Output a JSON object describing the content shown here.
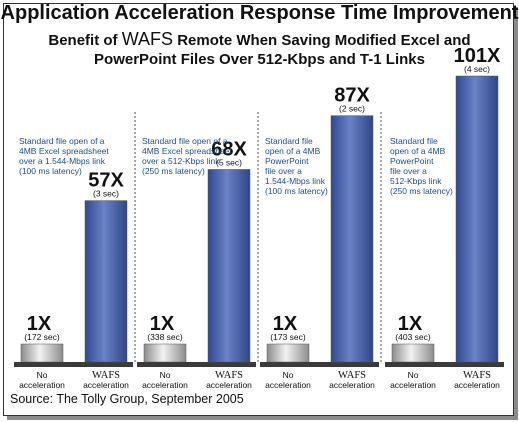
{
  "chart_data": {
    "type": "bar",
    "title": "Application Acceleration Response Time Improvement",
    "subtitle": {
      "pre": "Benefit of",
      "brand": "WAFS",
      "post": "Remote When Saving Modified Excel and",
      "line2": "PowerPoint Files Over 512-Kbps and T-1 Links"
    },
    "categories": [
      "No acceleration",
      "WAFS acceleration"
    ],
    "category_labels": [
      [
        "No",
        "acceleration"
      ],
      [
        "WAFS",
        "acceleration"
      ]
    ],
    "ylim": [
      0,
      101
    ],
    "grid": false,
    "groups": [
      {
        "note": [
          "Standard file open of a",
          "4MB Excel spreadsheet",
          "over a 1.544-Mbps link",
          "(100 ms latency)"
        ],
        "values": [
          1,
          57
        ],
        "labels": [
          "1X",
          "57X"
        ],
        "times": [
          "(172 sec)",
          "(3 sec)"
        ]
      },
      {
        "note": [
          "Standard file open of a",
          "4MB Excel spreadsheet",
          "over a 512-Kbps link",
          "(250 ms latency)"
        ],
        "values": [
          1,
          68
        ],
        "labels": [
          "1X",
          "68X"
        ],
        "times": [
          "(338 sec)",
          "(5 sec)"
        ]
      },
      {
        "note": [
          "Standard file",
          "open of a 4MB",
          "PowerPoint",
          "file over a",
          "1.544-Mbps link",
          "(100 ms latency)"
        ],
        "values": [
          1,
          87
        ],
        "labels": [
          "1X",
          "87X"
        ],
        "times": [
          "(173 sec)",
          "(2 sec)"
        ]
      },
      {
        "note": [
          "Standard file",
          "open of a 4MB",
          "PowerPoint",
          "file over a",
          "512-Kbps link",
          "(250 ms latency)"
        ],
        "values": [
          1,
          101
        ],
        "labels": [
          "1X",
          "101X"
        ],
        "times": [
          "(403 sec)",
          "(4 sec)"
        ]
      }
    ],
    "source": "Source: The Tolly Group, September 2005",
    "colors": {
      "wafs_bar": "#4a62a8",
      "baseline_bar": "#c8c8c8",
      "note_text": "#1f4f86",
      "panel_base": "#3a3a3a"
    }
  }
}
